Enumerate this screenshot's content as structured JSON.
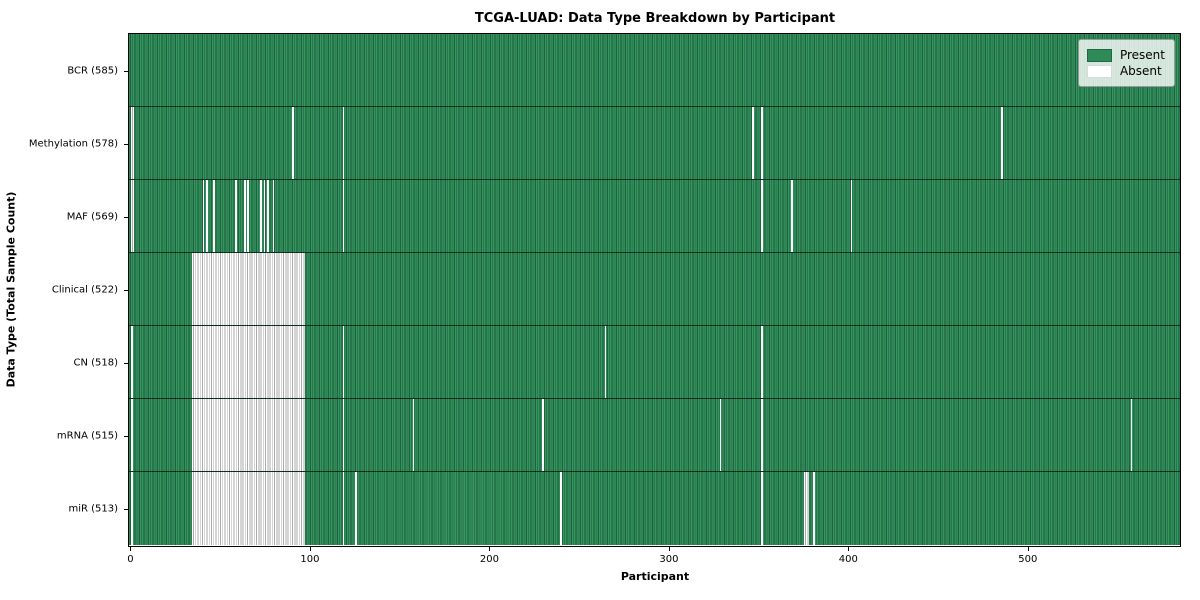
{
  "title": "TCGA-LUAD: Data Type Breakdown by Participant",
  "xlabel": "Participant",
  "ylabel": "Data Type (Total Sample Count)",
  "legend": {
    "present_label": "Present",
    "absent_label": "Absent"
  },
  "colors": {
    "present_green": "#2e8b57",
    "absent_white": "#ffffff",
    "row_divider": "#000000",
    "legend_bg": "rgba(255,255,255,0.8)"
  },
  "chart_data": {
    "type": "heatmap",
    "title": "TCGA-LUAD: Data Type Breakdown by Participant",
    "xlabel": "Participant",
    "ylabel": "Data Type (Total Sample Count)",
    "legend_entries": [
      "Present",
      "Absent"
    ],
    "legend_position": "upper right",
    "grid": false,
    "n_participants": 585,
    "x_ticks": [
      0,
      100,
      200,
      300,
      400,
      500
    ],
    "x_range": [
      0,
      585
    ],
    "rows": [
      {
        "label": "BCR (585)",
        "data_type": "BCR",
        "present_count": 585,
        "absent_segments": []
      },
      {
        "label": "Methylation (578)",
        "data_type": "Methylation",
        "present_count": 578,
        "absent_segments": [
          [
            1,
            2
          ],
          [
            91,
            91
          ],
          [
            119,
            119
          ],
          [
            347,
            347
          ],
          [
            352,
            352
          ],
          [
            486,
            486
          ]
        ]
      },
      {
        "label": "MAF (569)",
        "data_type": "MAF",
        "present_count": 569,
        "absent_segments": [
          [
            1,
            2
          ],
          [
            41,
            41
          ],
          [
            43,
            43
          ],
          [
            47,
            47
          ],
          [
            59,
            59
          ],
          [
            64,
            64
          ],
          [
            66,
            66
          ],
          [
            73,
            73
          ],
          [
            75,
            75
          ],
          [
            77,
            77
          ],
          [
            80,
            80
          ],
          [
            119,
            119
          ],
          [
            352,
            352
          ],
          [
            369,
            369
          ],
          [
            402,
            402
          ]
        ]
      },
      {
        "label": "Clinical (522)",
        "data_type": "Clinical",
        "present_count": 522,
        "absent_segments": [
          [
            35,
            97
          ]
        ]
      },
      {
        "label": "CN (518)",
        "data_type": "CN",
        "present_count": 518,
        "absent_segments": [
          [
            1,
            1
          ],
          [
            35,
            97
          ],
          [
            119,
            119
          ],
          [
            265,
            265
          ],
          [
            352,
            352
          ]
        ]
      },
      {
        "label": "mRNA (515)",
        "data_type": "mRNA",
        "present_count": 515,
        "absent_segments": [
          [
            1,
            1
          ],
          [
            35,
            97
          ],
          [
            119,
            119
          ],
          [
            158,
            158
          ],
          [
            230,
            230
          ],
          [
            329,
            329
          ],
          [
            352,
            352
          ],
          [
            558,
            558
          ]
        ]
      },
      {
        "label": "miR (513)",
        "data_type": "miR",
        "present_count": 513,
        "absent_segments": [
          [
            1,
            1
          ],
          [
            35,
            97
          ],
          [
            119,
            119
          ],
          [
            126,
            126
          ],
          [
            240,
            240
          ],
          [
            352,
            352
          ],
          [
            376,
            378
          ],
          [
            381,
            381
          ]
        ]
      }
    ]
  }
}
